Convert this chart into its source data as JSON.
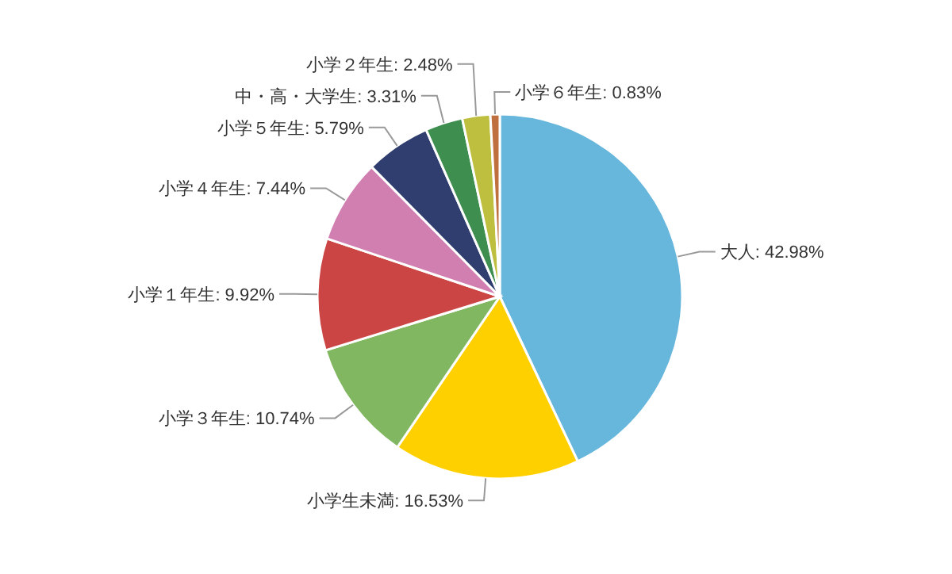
{
  "chart_data": {
    "type": "pie",
    "categories": [
      "大人",
      "小学生未満",
      "小学３年生",
      "小学１年生",
      "小学４年生",
      "小学５年生",
      "中・高・大学生",
      "小学２年生",
      "小学６年生"
    ],
    "values": [
      42.98,
      16.53,
      10.74,
      9.92,
      7.44,
      5.79,
      3.31,
      2.48,
      0.83
    ],
    "colors": [
      "#67b6dc",
      "#ffd000",
      "#82b761",
      "#cc4545",
      "#d07fb0",
      "#2f3e6f",
      "#3e8e4f",
      "#bebe3f",
      "#c0703f"
    ],
    "value_labels": [
      ": 42.98%",
      ": 16.53%",
      ": 10.74%",
      ": 9.92%",
      ": 7.44%",
      ": 5.79%",
      ": 3.31%",
      ": 2.48%",
      ": 0.83%"
    ]
  }
}
